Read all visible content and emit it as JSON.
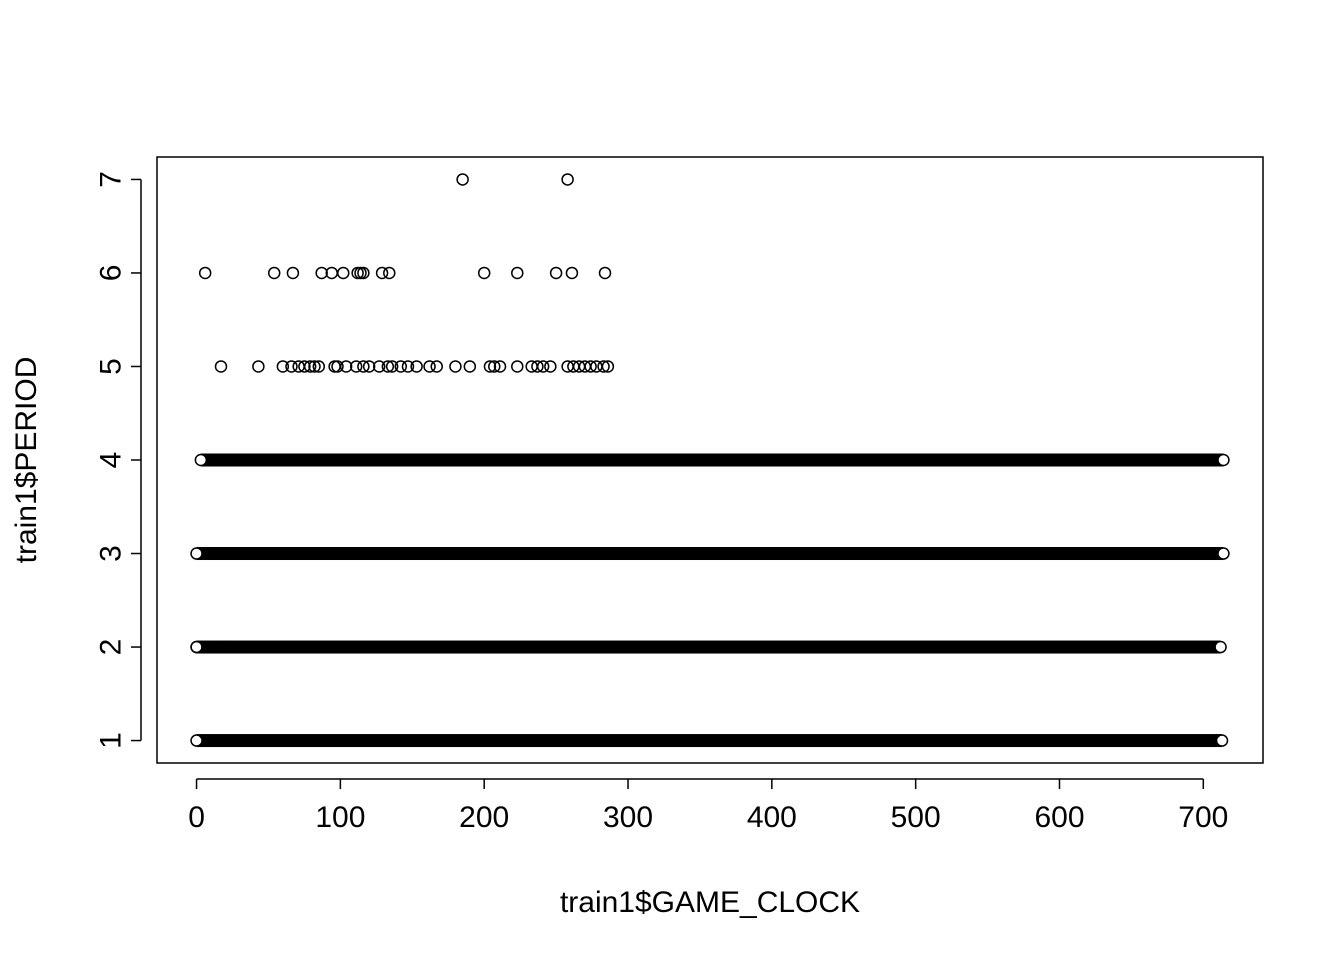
{
  "chart_data": {
    "type": "scatter",
    "title": "",
    "xlabel": "train1$GAME_CLOCK",
    "ylabel": "train1$PERIOD",
    "xlim": [
      -27.5,
      741.5
    ],
    "ylim": [
      0.76,
      7.24
    ],
    "x_ticks": [
      "0",
      "100",
      "200",
      "300",
      "400",
      "500",
      "600",
      "700"
    ],
    "x_tick_values": [
      0,
      100,
      200,
      300,
      400,
      500,
      600,
      700
    ],
    "y_ticks": [
      "1",
      "2",
      "3",
      "4",
      "5",
      "6",
      "7"
    ],
    "y_tick_values": [
      1,
      2,
      3,
      4,
      5,
      6,
      7
    ],
    "grid": false,
    "marker": "open-circle",
    "marker_color": "#000000",
    "dense_bands": [
      {
        "y": 1,
        "x_start": 0,
        "x_end": 713
      },
      {
        "y": 2,
        "x_start": 0,
        "x_end": 712
      },
      {
        "y": 3,
        "x_start": 0,
        "x_end": 714
      },
      {
        "y": 4,
        "x_start": 3,
        "x_end": 714
      }
    ],
    "series": [
      {
        "values": [
          {
            "x": 0,
            "y": 2
          },
          {
            "x": 18,
            "y": 2
          },
          {
            "x": 22,
            "y": 2
          },
          {
            "x": 17,
            "y": 5
          },
          {
            "x": 43,
            "y": 5
          },
          {
            "x": 60,
            "y": 5
          },
          {
            "x": 66,
            "y": 5
          },
          {
            "x": 71,
            "y": 5
          },
          {
            "x": 75,
            "y": 5
          },
          {
            "x": 79,
            "y": 5
          },
          {
            "x": 82,
            "y": 5
          },
          {
            "x": 85,
            "y": 5
          },
          {
            "x": 96,
            "y": 5
          },
          {
            "x": 98,
            "y": 5
          },
          {
            "x": 104,
            "y": 5
          },
          {
            "x": 111,
            "y": 5
          },
          {
            "x": 116,
            "y": 5
          },
          {
            "x": 120,
            "y": 5
          },
          {
            "x": 127,
            "y": 5
          },
          {
            "x": 133,
            "y": 5
          },
          {
            "x": 136,
            "y": 5
          },
          {
            "x": 142,
            "y": 5
          },
          {
            "x": 147,
            "y": 5
          },
          {
            "x": 153,
            "y": 5
          },
          {
            "x": 162,
            "y": 5
          },
          {
            "x": 167,
            "y": 5
          },
          {
            "x": 180,
            "y": 5
          },
          {
            "x": 190,
            "y": 5
          },
          {
            "x": 204,
            "y": 5
          },
          {
            "x": 207,
            "y": 5
          },
          {
            "x": 211,
            "y": 5
          },
          {
            "x": 223,
            "y": 5
          },
          {
            "x": 233,
            "y": 5
          },
          {
            "x": 237,
            "y": 5
          },
          {
            "x": 241,
            "y": 5
          },
          {
            "x": 246,
            "y": 5
          },
          {
            "x": 258,
            "y": 5
          },
          {
            "x": 262,
            "y": 5
          },
          {
            "x": 266,
            "y": 5
          },
          {
            "x": 270,
            "y": 5
          },
          {
            "x": 274,
            "y": 5
          },
          {
            "x": 278,
            "y": 5
          },
          {
            "x": 283,
            "y": 5
          },
          {
            "x": 286,
            "y": 5
          },
          {
            "x": 6,
            "y": 6
          },
          {
            "x": 54,
            "y": 6
          },
          {
            "x": 67,
            "y": 6
          },
          {
            "x": 87,
            "y": 6
          },
          {
            "x": 94,
            "y": 6
          },
          {
            "x": 102,
            "y": 6
          },
          {
            "x": 112,
            "y": 6
          },
          {
            "x": 114,
            "y": 6
          },
          {
            "x": 116,
            "y": 6
          },
          {
            "x": 129,
            "y": 6
          },
          {
            "x": 134,
            "y": 6
          },
          {
            "x": 200,
            "y": 6
          },
          {
            "x": 223,
            "y": 6
          },
          {
            "x": 250,
            "y": 6
          },
          {
            "x": 261,
            "y": 6
          },
          {
            "x": 284,
            "y": 6
          },
          {
            "x": 185,
            "y": 7
          },
          {
            "x": 258,
            "y": 7
          }
        ]
      }
    ]
  }
}
